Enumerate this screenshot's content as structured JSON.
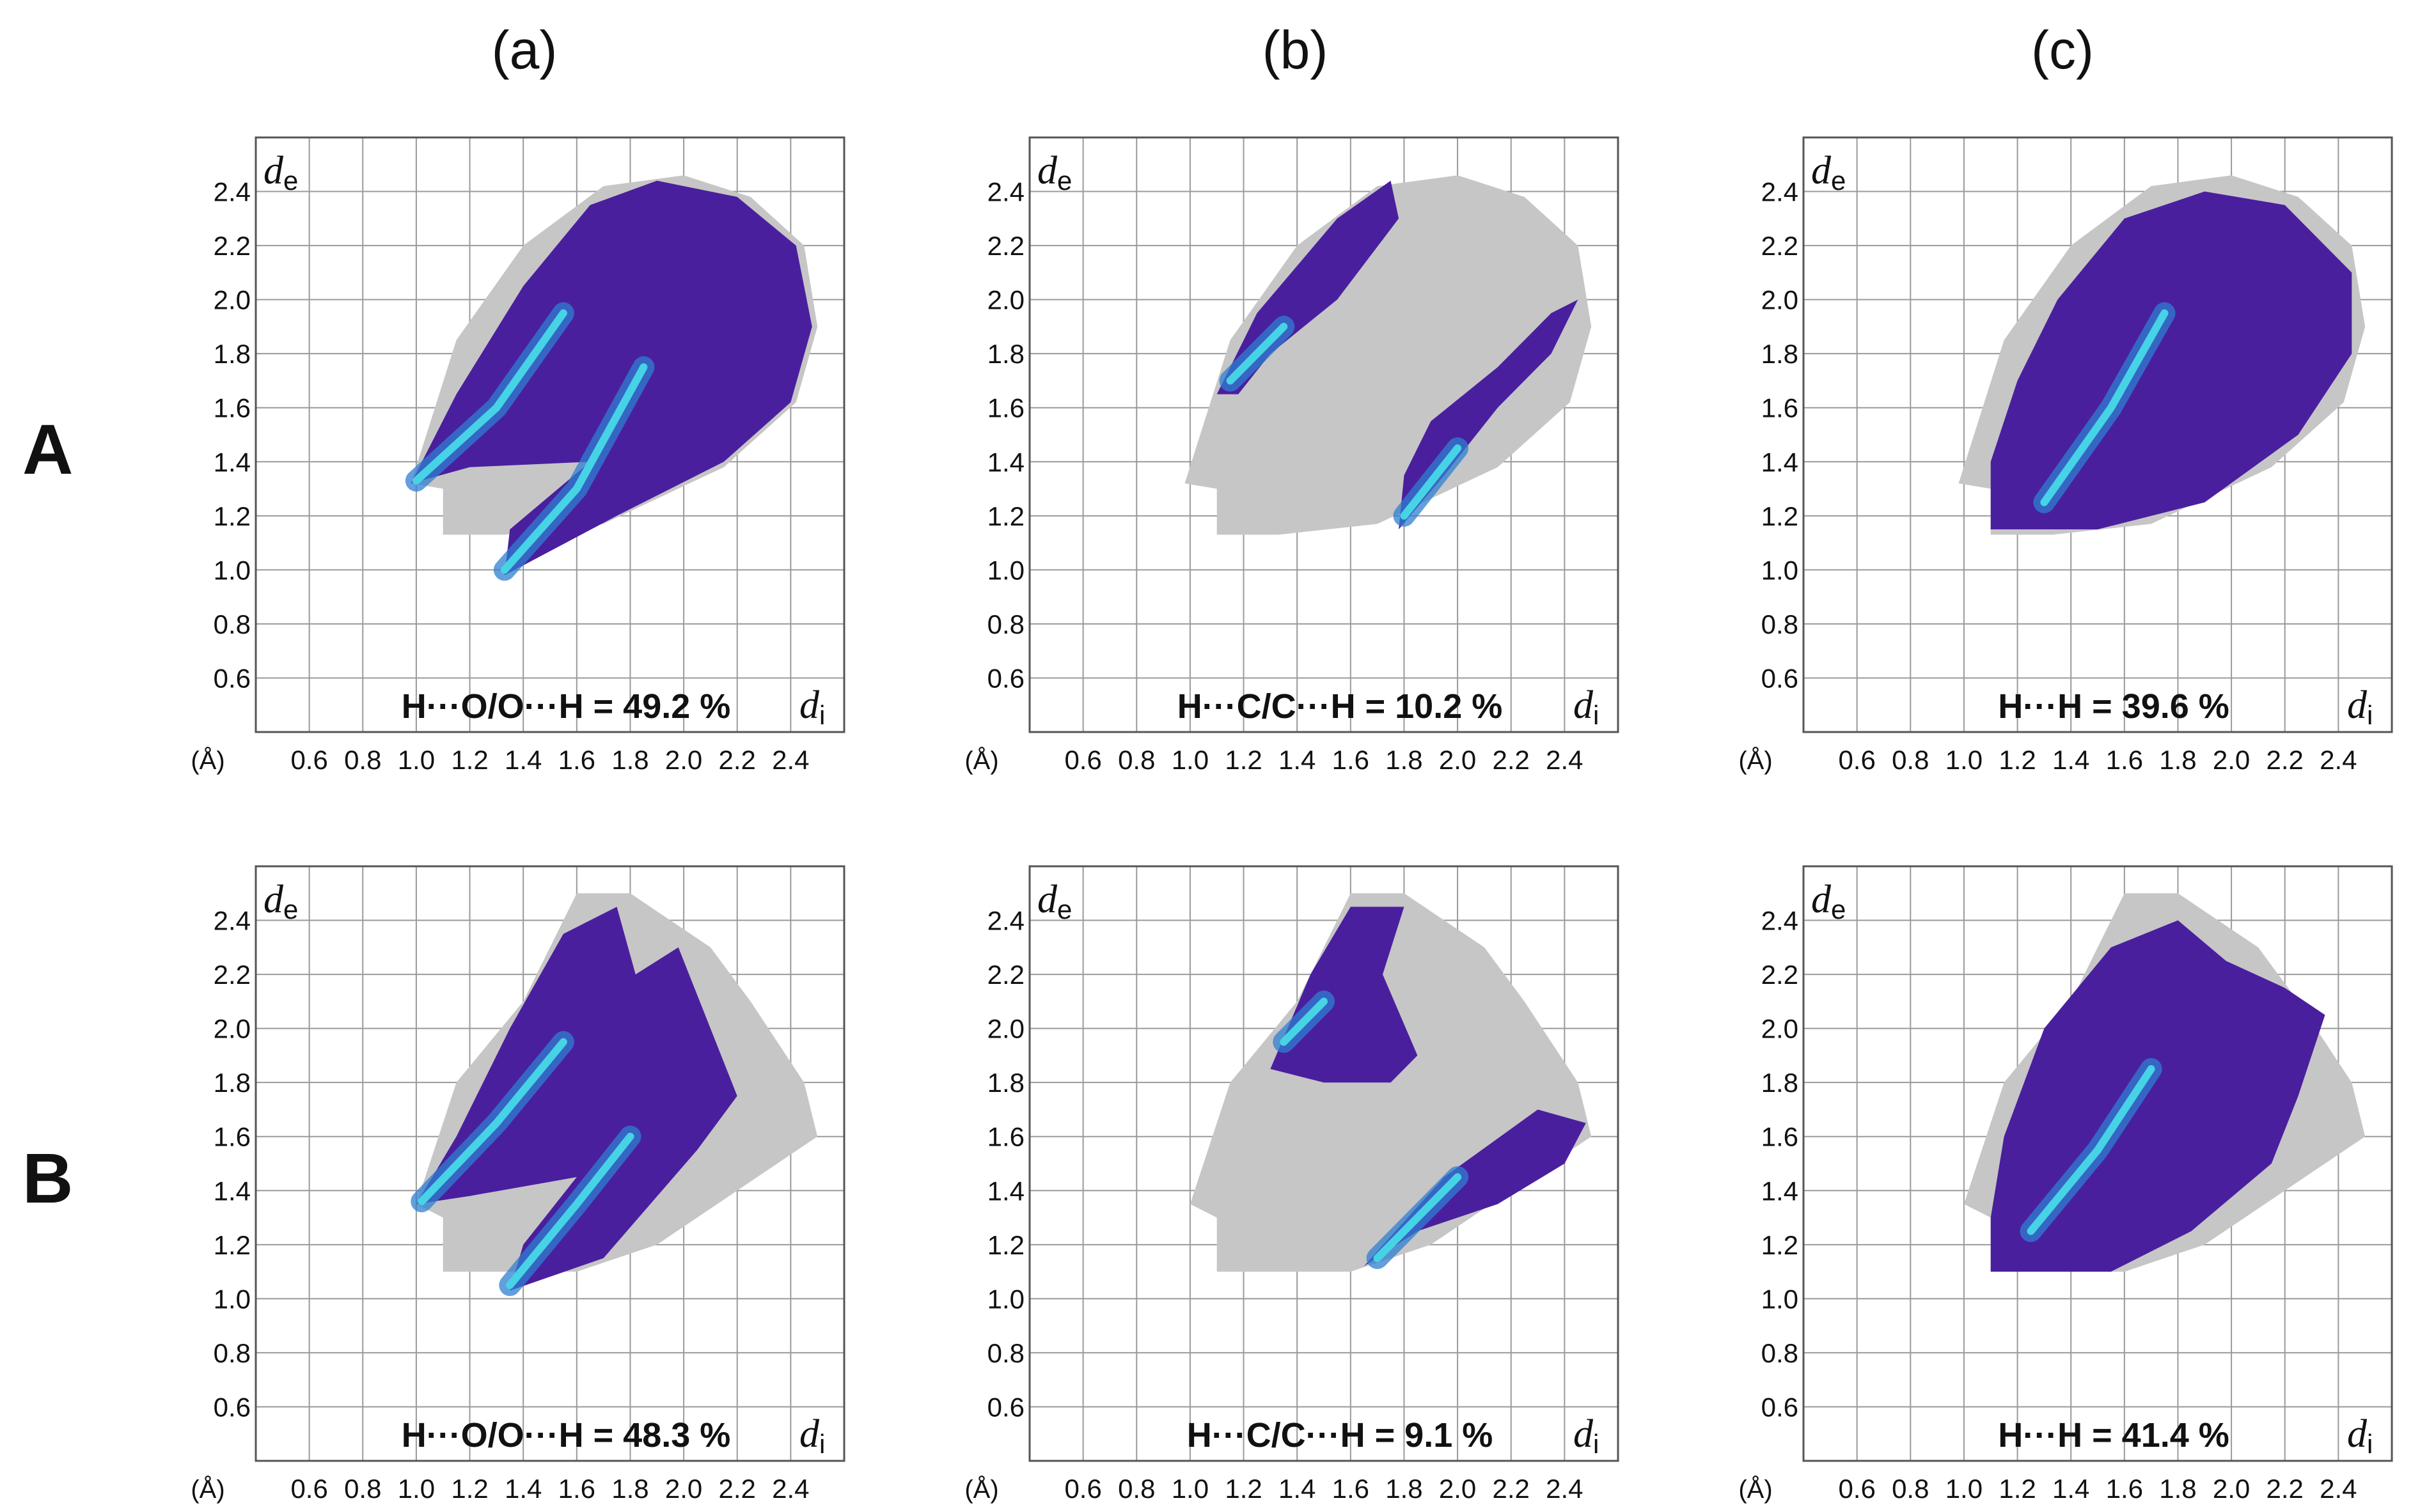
{
  "column_labels": [
    "(a)",
    "(b)",
    "(c)"
  ],
  "row_labels": [
    "A",
    "B"
  ],
  "colors": {
    "background_plot": "#c6c6c6",
    "contact_main": "#4a1f9e",
    "contact_mid": "#2f7fd0",
    "contact_hot": "#46d3e6",
    "grid": "#9a9a9a",
    "frame": "#555555"
  },
  "chart_data": [
    {
      "type": "fingerprint",
      "row": "A",
      "col": "(a)",
      "contact": "H···O/O···H",
      "label": "H···O/O···H = 49.2 %",
      "percent": 49.2,
      "xlabel": "d",
      "xlabel_sub": "i",
      "ylabel": "d",
      "ylabel_sub": "e",
      "unit": "(Å)",
      "xticks": [
        "0.6",
        "0.8",
        "1.0",
        "1.2",
        "1.4",
        "1.6",
        "1.8",
        "2.0",
        "2.2",
        "2.4"
      ],
      "yticks": [
        "0.6",
        "0.8",
        "1.0",
        "1.2",
        "1.4",
        "1.6",
        "1.8",
        "2.0",
        "2.2",
        "2.4"
      ],
      "xlim": [
        0.4,
        2.6
      ],
      "ylim": [
        0.4,
        2.6
      ],
      "gray_hull": [
        [
          1.1,
          1.13
        ],
        [
          1.33,
          1.13
        ],
        [
          1.7,
          1.17
        ],
        [
          2.15,
          1.38
        ],
        [
          2.42,
          1.62
        ],
        [
          2.5,
          1.9
        ],
        [
          2.45,
          2.2
        ],
        [
          2.25,
          2.38
        ],
        [
          2.0,
          2.46
        ],
        [
          1.7,
          2.42
        ],
        [
          1.4,
          2.2
        ],
        [
          1.15,
          1.85
        ],
        [
          0.98,
          1.32
        ],
        [
          1.1,
          1.3
        ]
      ],
      "color_regions": [
        [
          [
            0.98,
            1.32
          ],
          [
            1.15,
            1.65
          ],
          [
            1.4,
            2.05
          ],
          [
            1.65,
            2.35
          ],
          [
            1.9,
            2.44
          ],
          [
            2.2,
            2.38
          ],
          [
            2.42,
            2.2
          ],
          [
            2.48,
            1.9
          ],
          [
            2.4,
            1.62
          ],
          [
            2.15,
            1.4
          ],
          [
            1.75,
            1.2
          ],
          [
            1.33,
            0.98
          ],
          [
            1.35,
            1.15
          ],
          [
            1.65,
            1.4
          ],
          [
            1.2,
            1.38
          ]
        ]
      ],
      "hot_lines": [
        [
          [
            1.0,
            1.33
          ],
          [
            1.3,
            1.6
          ],
          [
            1.55,
            1.95
          ]
        ],
        [
          [
            1.33,
            1.0
          ],
          [
            1.6,
            1.3
          ],
          [
            1.85,
            1.75
          ]
        ]
      ]
    },
    {
      "type": "fingerprint",
      "row": "A",
      "col": "(b)",
      "contact": "H···C/C···H",
      "label": "H···C/C···H = 10.2 %",
      "percent": 10.2,
      "xlabel": "d",
      "xlabel_sub": "i",
      "ylabel": "d",
      "ylabel_sub": "e",
      "unit": "(Å)",
      "xticks": [
        "0.6",
        "0.8",
        "1.0",
        "1.2",
        "1.4",
        "1.6",
        "1.8",
        "2.0",
        "2.2",
        "2.4"
      ],
      "yticks": [
        "0.6",
        "0.8",
        "1.0",
        "1.2",
        "1.4",
        "1.6",
        "1.8",
        "2.0",
        "2.2",
        "2.4"
      ],
      "xlim": [
        0.4,
        2.6
      ],
      "ylim": [
        0.4,
        2.6
      ],
      "gray_hull": [
        [
          1.1,
          1.13
        ],
        [
          1.33,
          1.13
        ],
        [
          1.7,
          1.17
        ],
        [
          2.15,
          1.38
        ],
        [
          2.42,
          1.62
        ],
        [
          2.5,
          1.9
        ],
        [
          2.45,
          2.2
        ],
        [
          2.25,
          2.38
        ],
        [
          2.0,
          2.46
        ],
        [
          1.7,
          2.42
        ],
        [
          1.4,
          2.2
        ],
        [
          1.15,
          1.85
        ],
        [
          0.98,
          1.32
        ],
        [
          1.1,
          1.3
        ]
      ],
      "color_regions": [
        [
          [
            1.1,
            1.65
          ],
          [
            1.25,
            1.95
          ],
          [
            1.55,
            2.3
          ],
          [
            1.75,
            2.44
          ],
          [
            1.78,
            2.3
          ],
          [
            1.55,
            2.0
          ],
          [
            1.3,
            1.8
          ],
          [
            1.18,
            1.65
          ]
        ],
        [
          [
            1.78,
            1.15
          ],
          [
            1.95,
            1.35
          ],
          [
            2.15,
            1.6
          ],
          [
            2.35,
            1.8
          ],
          [
            2.45,
            2.0
          ],
          [
            2.35,
            1.95
          ],
          [
            2.15,
            1.75
          ],
          [
            1.9,
            1.55
          ],
          [
            1.8,
            1.35
          ]
        ]
      ],
      "hot_lines": [
        [
          [
            1.15,
            1.7
          ],
          [
            1.35,
            1.9
          ]
        ],
        [
          [
            1.8,
            1.2
          ],
          [
            2.0,
            1.45
          ]
        ]
      ]
    },
    {
      "type": "fingerprint",
      "row": "A",
      "col": "(c)",
      "contact": "H···H",
      "label": "H···H = 39.6 %",
      "percent": 39.6,
      "xlabel": "d",
      "xlabel_sub": "i",
      "ylabel": "d",
      "ylabel_sub": "e",
      "unit": "(Å)",
      "xticks": [
        "0.6",
        "0.8",
        "1.0",
        "1.2",
        "1.4",
        "1.6",
        "1.8",
        "2.0",
        "2.2",
        "2.4"
      ],
      "yticks": [
        "0.6",
        "0.8",
        "1.0",
        "1.2",
        "1.4",
        "1.6",
        "1.8",
        "2.0",
        "2.2",
        "2.4"
      ],
      "xlim": [
        0.4,
        2.6
      ],
      "ylim": [
        0.4,
        2.6
      ],
      "gray_hull": [
        [
          1.1,
          1.13
        ],
        [
          1.33,
          1.13
        ],
        [
          1.7,
          1.17
        ],
        [
          2.15,
          1.38
        ],
        [
          2.42,
          1.62
        ],
        [
          2.5,
          1.9
        ],
        [
          2.45,
          2.2
        ],
        [
          2.25,
          2.38
        ],
        [
          2.0,
          2.46
        ],
        [
          1.7,
          2.42
        ],
        [
          1.4,
          2.2
        ],
        [
          1.15,
          1.85
        ],
        [
          0.98,
          1.32
        ],
        [
          1.1,
          1.3
        ]
      ],
      "color_regions": [
        [
          [
            1.1,
            1.15
          ],
          [
            1.5,
            1.15
          ],
          [
            1.9,
            1.25
          ],
          [
            2.25,
            1.5
          ],
          [
            2.45,
            1.8
          ],
          [
            2.45,
            2.1
          ],
          [
            2.2,
            2.35
          ],
          [
            1.9,
            2.4
          ],
          [
            1.6,
            2.3
          ],
          [
            1.35,
            2.0
          ],
          [
            1.2,
            1.7
          ],
          [
            1.1,
            1.4
          ]
        ]
      ],
      "hot_lines": [
        [
          [
            1.3,
            1.25
          ],
          [
            1.55,
            1.6
          ],
          [
            1.75,
            1.95
          ]
        ]
      ]
    },
    {
      "type": "fingerprint",
      "row": "B",
      "col": "(a)",
      "contact": "H···O/O···H",
      "label": "H···O/O···H = 48.3 %",
      "percent": 48.3,
      "xlabel": "d",
      "xlabel_sub": "i",
      "ylabel": "d",
      "ylabel_sub": "e",
      "unit": "(Å)",
      "xticks": [
        "0.6",
        "0.8",
        "1.0",
        "1.2",
        "1.4",
        "1.6",
        "1.8",
        "2.0",
        "2.2",
        "2.4"
      ],
      "yticks": [
        "0.6",
        "0.8",
        "1.0",
        "1.2",
        "1.4",
        "1.6",
        "1.8",
        "2.0",
        "2.2",
        "2.4"
      ],
      "xlim": [
        0.4,
        2.6
      ],
      "ylim": [
        0.4,
        2.6
      ],
      "gray_hull": [
        [
          1.1,
          1.1
        ],
        [
          1.6,
          1.1
        ],
        [
          1.9,
          1.2
        ],
        [
          2.2,
          1.4
        ],
        [
          2.5,
          1.6
        ],
        [
          2.45,
          1.8
        ],
        [
          2.25,
          2.1
        ],
        [
          2.1,
          2.3
        ],
        [
          1.8,
          2.5
        ],
        [
          1.6,
          2.5
        ],
        [
          1.4,
          2.1
        ],
        [
          1.15,
          1.8
        ],
        [
          1.0,
          1.35
        ],
        [
          1.1,
          1.3
        ]
      ],
      "color_regions": [
        [
          [
            1.0,
            1.35
          ],
          [
            1.15,
            1.6
          ],
          [
            1.35,
            2.0
          ],
          [
            1.55,
            2.35
          ],
          [
            1.75,
            2.45
          ],
          [
            1.82,
            2.2
          ],
          [
            1.98,
            2.3
          ],
          [
            2.1,
            2.0
          ],
          [
            2.2,
            1.75
          ],
          [
            2.05,
            1.55
          ],
          [
            1.7,
            1.15
          ],
          [
            1.35,
            1.03
          ],
          [
            1.4,
            1.2
          ],
          [
            1.6,
            1.45
          ],
          [
            1.2,
            1.38
          ]
        ]
      ],
      "hot_lines": [
        [
          [
            1.02,
            1.36
          ],
          [
            1.3,
            1.65
          ],
          [
            1.55,
            1.95
          ]
        ],
        [
          [
            1.35,
            1.05
          ],
          [
            1.6,
            1.35
          ],
          [
            1.8,
            1.6
          ]
        ]
      ]
    },
    {
      "type": "fingerprint",
      "row": "B",
      "col": "(b)",
      "contact": "H···C/C···H",
      "label": "H···C/C···H = 9.1 %",
      "percent": 9.1,
      "xlabel": "d",
      "xlabel_sub": "i",
      "ylabel": "d",
      "ylabel_sub": "e",
      "unit": "(Å)",
      "xticks": [
        "0.6",
        "0.8",
        "1.0",
        "1.2",
        "1.4",
        "1.6",
        "1.8",
        "2.0",
        "2.2",
        "2.4"
      ],
      "yticks": [
        "0.6",
        "0.8",
        "1.0",
        "1.2",
        "1.4",
        "1.6",
        "1.8",
        "2.0",
        "2.2",
        "2.4"
      ],
      "xlim": [
        0.4,
        2.6
      ],
      "ylim": [
        0.4,
        2.6
      ],
      "gray_hull": [
        [
          1.1,
          1.1
        ],
        [
          1.6,
          1.1
        ],
        [
          1.9,
          1.2
        ],
        [
          2.2,
          1.4
        ],
        [
          2.5,
          1.6
        ],
        [
          2.45,
          1.8
        ],
        [
          2.25,
          2.1
        ],
        [
          2.1,
          2.3
        ],
        [
          1.8,
          2.5
        ],
        [
          1.6,
          2.5
        ],
        [
          1.4,
          2.1
        ],
        [
          1.15,
          1.8
        ],
        [
          1.0,
          1.35
        ],
        [
          1.1,
          1.3
        ]
      ],
      "color_regions": [
        [
          [
            1.3,
            1.85
          ],
          [
            1.45,
            2.2
          ],
          [
            1.6,
            2.45
          ],
          [
            1.8,
            2.45
          ],
          [
            1.72,
            2.2
          ],
          [
            1.85,
            1.9
          ],
          [
            1.75,
            1.8
          ],
          [
            1.5,
            1.8
          ]
        ],
        [
          [
            1.65,
            1.12
          ],
          [
            1.95,
            1.45
          ],
          [
            2.3,
            1.7
          ],
          [
            2.48,
            1.65
          ],
          [
            2.4,
            1.5
          ],
          [
            2.15,
            1.35
          ],
          [
            1.85,
            1.25
          ]
        ]
      ],
      "hot_lines": [
        [
          [
            1.7,
            1.15
          ],
          [
            2.0,
            1.45
          ]
        ],
        [
          [
            1.35,
            1.95
          ],
          [
            1.5,
            2.1
          ]
        ]
      ]
    },
    {
      "type": "fingerprint",
      "row": "B",
      "col": "(c)",
      "contact": "H···H",
      "label": "H···H = 41.4 %",
      "percent": 41.4,
      "xlabel": "d",
      "xlabel_sub": "i",
      "ylabel": "d",
      "ylabel_sub": "e",
      "unit": "(Å)",
      "xticks": [
        "0.6",
        "0.8",
        "1.0",
        "1.2",
        "1.4",
        "1.6",
        "1.8",
        "2.0",
        "2.2",
        "2.4"
      ],
      "yticks": [
        "0.6",
        "0.8",
        "1.0",
        "1.2",
        "1.4",
        "1.6",
        "1.8",
        "2.0",
        "2.2",
        "2.4"
      ],
      "xlim": [
        0.4,
        2.6
      ],
      "ylim": [
        0.4,
        2.6
      ],
      "gray_hull": [
        [
          1.1,
          1.1
        ],
        [
          1.6,
          1.1
        ],
        [
          1.9,
          1.2
        ],
        [
          2.2,
          1.4
        ],
        [
          2.5,
          1.6
        ],
        [
          2.45,
          1.8
        ],
        [
          2.25,
          2.1
        ],
        [
          2.1,
          2.3
        ],
        [
          1.8,
          2.5
        ],
        [
          1.6,
          2.5
        ],
        [
          1.4,
          2.1
        ],
        [
          1.15,
          1.8
        ],
        [
          1.0,
          1.35
        ],
        [
          1.1,
          1.3
        ]
      ],
      "color_regions": [
        [
          [
            1.1,
            1.1
          ],
          [
            1.55,
            1.1
          ],
          [
            1.85,
            1.25
          ],
          [
            2.15,
            1.5
          ],
          [
            2.25,
            1.75
          ],
          [
            2.35,
            2.05
          ],
          [
            2.2,
            2.15
          ],
          [
            1.98,
            2.25
          ],
          [
            1.8,
            2.4
          ],
          [
            1.55,
            2.3
          ],
          [
            1.3,
            2.0
          ],
          [
            1.15,
            1.6
          ],
          [
            1.1,
            1.3
          ]
        ]
      ],
      "hot_lines": [
        [
          [
            1.25,
            1.25
          ],
          [
            1.5,
            1.55
          ],
          [
            1.7,
            1.85
          ]
        ]
      ]
    }
  ]
}
